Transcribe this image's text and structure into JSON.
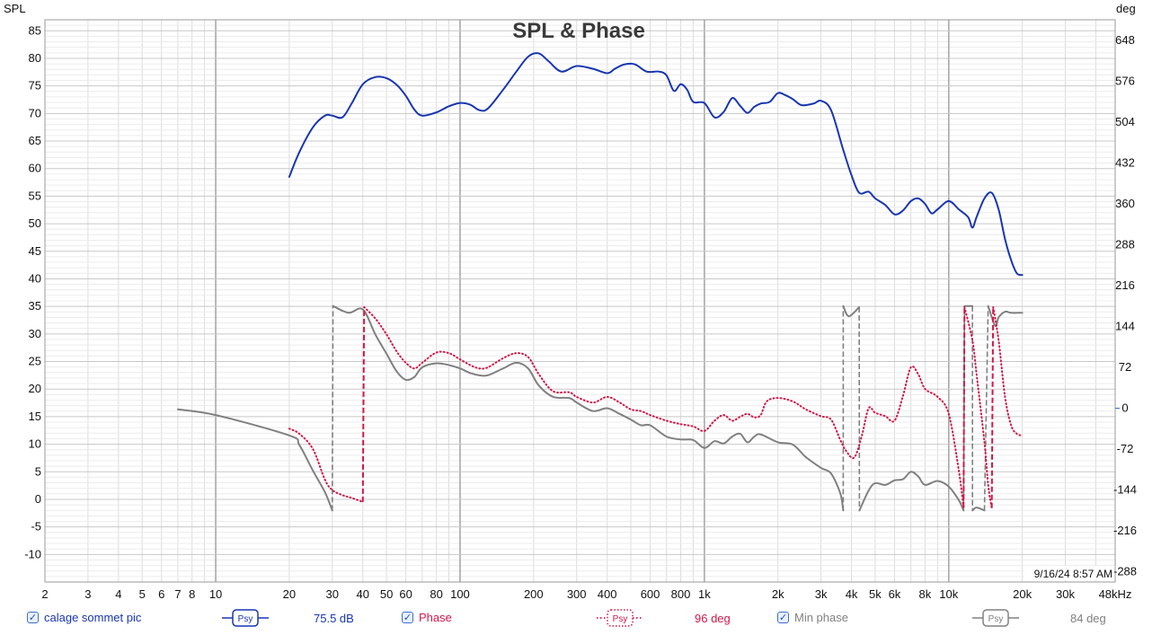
{
  "chart_data": {
    "type": "line",
    "title": "SPL & Phase",
    "ylabel_left": "SPL",
    "ylabel_right": "deg",
    "xscale": "log",
    "xlim": [
      2,
      48000
    ],
    "ylim_left": [
      -15,
      87
    ],
    "ylim_right": [
      -306,
      684
    ],
    "grid": true,
    "x_tick_labels": [
      {
        "v": 2,
        "t": "2"
      },
      {
        "v": 3,
        "t": "3"
      },
      {
        "v": 4,
        "t": "4"
      },
      {
        "v": 5,
        "t": "5"
      },
      {
        "v": 6,
        "t": "6"
      },
      {
        "v": 7,
        "t": "7"
      },
      {
        "v": 8,
        "t": "8"
      },
      {
        "v": 10,
        "t": "10"
      },
      {
        "v": 20,
        "t": "20"
      },
      {
        "v": 30,
        "t": "30"
      },
      {
        "v": 40,
        "t": "40"
      },
      {
        "v": 50,
        "t": "50"
      },
      {
        "v": 60,
        "t": "60"
      },
      {
        "v": 80,
        "t": "80"
      },
      {
        "v": 100,
        "t": "100"
      },
      {
        "v": 200,
        "t": "200"
      },
      {
        "v": 300,
        "t": "300"
      },
      {
        "v": 400,
        "t": "400"
      },
      {
        "v": 600,
        "t": "600"
      },
      {
        "v": 800,
        "t": "800"
      },
      {
        "v": 1000,
        "t": "1k"
      },
      {
        "v": 2000,
        "t": "2k"
      },
      {
        "v": 3000,
        "t": "3k"
      },
      {
        "v": 4000,
        "t": "4k"
      },
      {
        "v": 5000,
        "t": "5k"
      },
      {
        "v": 6000,
        "t": "6k"
      },
      {
        "v": 8000,
        "t": "8k"
      },
      {
        "v": 10000,
        "t": "10k"
      },
      {
        "v": 20000,
        "t": "20k"
      },
      {
        "v": 30000,
        "t": "30k"
      },
      {
        "v": 48000,
        "t": "48kHz"
      }
    ],
    "y_left_ticks": [
      -10,
      -5,
      0,
      5,
      10,
      15,
      20,
      25,
      30,
      35,
      40,
      45,
      50,
      55,
      60,
      65,
      70,
      75,
      80,
      85
    ],
    "y_right_ticks": [
      -288,
      -216,
      -144,
      -72,
      0,
      72,
      144,
      216,
      288,
      360,
      432,
      504,
      576,
      648
    ],
    "timestamp": "9/16/24 8:57 AM",
    "series": [
      {
        "name": "calage sommet pic",
        "axis": "left",
        "color": "#1836b0",
        "style": "solid",
        "readout": "75.5 dB",
        "points": [
          [
            20,
            58.5
          ],
          [
            22,
            63
          ],
          [
            25,
            67.5
          ],
          [
            28,
            69.6
          ],
          [
            30,
            69.6
          ],
          [
            33,
            69.3
          ],
          [
            36,
            71.8
          ],
          [
            40,
            75.3
          ],
          [
            45,
            76.6
          ],
          [
            50,
            76.4
          ],
          [
            55,
            75.2
          ],
          [
            60,
            73.2
          ],
          [
            65,
            70.7
          ],
          [
            70,
            69.6
          ],
          [
            80,
            70.2
          ],
          [
            90,
            71.3
          ],
          [
            100,
            71.9
          ],
          [
            110,
            71.6
          ],
          [
            120,
            70.6
          ],
          [
            130,
            70.9
          ],
          [
            150,
            74.3
          ],
          [
            170,
            77.6
          ],
          [
            190,
            80.3
          ],
          [
            210,
            80.9
          ],
          [
            230,
            79.5
          ],
          [
            260,
            77.6
          ],
          [
            300,
            78.6
          ],
          [
            350,
            78.1
          ],
          [
            400,
            77.3
          ],
          [
            430,
            78.1
          ],
          [
            470,
            78.9
          ],
          [
            520,
            78.9
          ],
          [
            580,
            77.6
          ],
          [
            650,
            77.6
          ],
          [
            700,
            76.9
          ],
          [
            750,
            74.1
          ],
          [
            800,
            75.3
          ],
          [
            850,
            74.3
          ],
          [
            900,
            72.1
          ],
          [
            1000,
            71.9
          ],
          [
            1100,
            69.3
          ],
          [
            1200,
            70.3
          ],
          [
            1300,
            72.8
          ],
          [
            1400,
            71.4
          ],
          [
            1500,
            70.1
          ],
          [
            1600,
            71.2
          ],
          [
            1700,
            71.8
          ],
          [
            1850,
            72.1
          ],
          [
            2000,
            73.7
          ],
          [
            2150,
            73.3
          ],
          [
            2300,
            72.6
          ],
          [
            2500,
            71.5
          ],
          [
            2800,
            71.8
          ],
          [
            3000,
            72.3
          ],
          [
            3300,
            70.6
          ],
          [
            3700,
            63.4
          ],
          [
            4000,
            58.8
          ],
          [
            4300,
            55.6
          ],
          [
            4700,
            55.8
          ],
          [
            5000,
            54.6
          ],
          [
            5500,
            53.4
          ],
          [
            6000,
            51.7
          ],
          [
            6500,
            52.4
          ],
          [
            7000,
            54.1
          ],
          [
            7500,
            54.6
          ],
          [
            8000,
            53.6
          ],
          [
            8500,
            51.9
          ],
          [
            9000,
            52.6
          ],
          [
            10000,
            54.1
          ],
          [
            11000,
            52.6
          ],
          [
            12000,
            51.2
          ],
          [
            12500,
            49.3
          ],
          [
            13000,
            51.2
          ],
          [
            14000,
            54.6
          ],
          [
            15000,
            55.6
          ],
          [
            16000,
            52.6
          ],
          [
            17000,
            47.2
          ],
          [
            18000,
            43.4
          ],
          [
            19000,
            41.0
          ],
          [
            20000,
            40.7
          ]
        ]
      },
      {
        "name": "Phase",
        "axis": "right",
        "color": "#d01848",
        "style": "dotted",
        "readout": "96 deg",
        "points": [
          [
            20,
            -36
          ],
          [
            22,
            -45
          ],
          [
            25,
            -72
          ],
          [
            28,
            -126
          ],
          [
            30,
            -144
          ],
          [
            33,
            -153
          ],
          [
            36,
            -158
          ],
          [
            40,
            -165
          ],
          [
            40.5,
            178
          ],
          [
            45,
            158
          ],
          [
            50,
            130
          ],
          [
            55,
            100
          ],
          [
            60,
            80
          ],
          [
            65,
            70
          ],
          [
            70,
            80
          ],
          [
            80,
            98
          ],
          [
            90,
            97
          ],
          [
            100,
            86
          ],
          [
            110,
            76
          ],
          [
            120,
            70
          ],
          [
            130,
            72
          ],
          [
            150,
            88
          ],
          [
            170,
            97
          ],
          [
            190,
            90
          ],
          [
            210,
            60
          ],
          [
            240,
            30
          ],
          [
            280,
            28
          ],
          [
            300,
            20
          ],
          [
            350,
            10
          ],
          [
            400,
            20
          ],
          [
            450,
            10
          ],
          [
            500,
            -2
          ],
          [
            550,
            -5
          ],
          [
            600,
            -12
          ],
          [
            700,
            -22
          ],
          [
            800,
            -28
          ],
          [
            900,
            -32
          ],
          [
            1000,
            -40
          ],
          [
            1100,
            -22
          ],
          [
            1200,
            -12
          ],
          [
            1300,
            -22
          ],
          [
            1400,
            -15
          ],
          [
            1500,
            -10
          ],
          [
            1600,
            -16
          ],
          [
            1700,
            -12
          ],
          [
            1800,
            12
          ],
          [
            2000,
            18
          ],
          [
            2300,
            12
          ],
          [
            2600,
            -2
          ],
          [
            3000,
            -14
          ],
          [
            3300,
            -20
          ],
          [
            3600,
            -56
          ],
          [
            3800,
            -75
          ],
          [
            4100,
            -87
          ],
          [
            4400,
            -50
          ],
          [
            4700,
            0
          ],
          [
            5000,
            -8
          ],
          [
            5500,
            -14
          ],
          [
            6000,
            -22
          ],
          [
            6500,
            22
          ],
          [
            7000,
            72
          ],
          [
            7500,
            60
          ],
          [
            8000,
            34
          ],
          [
            9000,
            20
          ],
          [
            10000,
            -10
          ],
          [
            11000,
            -110
          ],
          [
            11500,
            -175
          ],
          [
            11600,
            178
          ],
          [
            12500,
            120
          ],
          [
            13000,
            60
          ],
          [
            14000,
            -60
          ],
          [
            14500,
            -135
          ],
          [
            15000,
            -176
          ],
          [
            15200,
            178
          ],
          [
            16000,
            120
          ],
          [
            17000,
            20
          ],
          [
            18000,
            -30
          ],
          [
            19000,
            -45
          ],
          [
            20000,
            -48
          ]
        ]
      },
      {
        "name": "Min phase",
        "axis": "right",
        "color": "#808080",
        "style": "solid",
        "readout": "84 deg",
        "points": [
          [
            7,
            -2
          ],
          [
            10,
            -12
          ],
          [
            20,
            -48
          ],
          [
            22,
            -65
          ],
          [
            25,
            -110
          ],
          [
            28,
            -148
          ],
          [
            30,
            -180
          ],
          [
            30.2,
            180
          ],
          [
            35,
            168
          ],
          [
            40,
            174
          ],
          [
            45,
            130
          ],
          [
            50,
            96
          ],
          [
            55,
            65
          ],
          [
            60,
            50
          ],
          [
            65,
            55
          ],
          [
            70,
            72
          ],
          [
            80,
            79
          ],
          [
            90,
            76
          ],
          [
            100,
            70
          ],
          [
            110,
            62
          ],
          [
            120,
            58
          ],
          [
            130,
            58
          ],
          [
            150,
            70
          ],
          [
            170,
            80
          ],
          [
            190,
            70
          ],
          [
            210,
            40
          ],
          [
            240,
            20
          ],
          [
            280,
            18
          ],
          [
            300,
            10
          ],
          [
            350,
            -5
          ],
          [
            400,
            0
          ],
          [
            450,
            -10
          ],
          [
            500,
            -20
          ],
          [
            550,
            -30
          ],
          [
            600,
            -30
          ],
          [
            700,
            -50
          ],
          [
            800,
            -55
          ],
          [
            900,
            -56
          ],
          [
            1000,
            -70
          ],
          [
            1100,
            -58
          ],
          [
            1200,
            -62
          ],
          [
            1300,
            -50
          ],
          [
            1400,
            -45
          ],
          [
            1500,
            -60
          ],
          [
            1600,
            -50
          ],
          [
            1700,
            -46
          ],
          [
            2000,
            -60
          ],
          [
            2300,
            -64
          ],
          [
            2600,
            -86
          ],
          [
            3000,
            -105
          ],
          [
            3300,
            -115
          ],
          [
            3600,
            -150
          ],
          [
            3700,
            -180
          ],
          [
            3701,
            180
          ],
          [
            3900,
            162
          ],
          [
            4300,
            178
          ],
          [
            4310,
            -180
          ],
          [
            4700,
            -145
          ],
          [
            5000,
            -132
          ],
          [
            5500,
            -135
          ],
          [
            6000,
            -127
          ],
          [
            6500,
            -125
          ],
          [
            7000,
            -112
          ],
          [
            7500,
            -120
          ],
          [
            8000,
            -135
          ],
          [
            9000,
            -128
          ],
          [
            10000,
            -138
          ],
          [
            11000,
            -162
          ],
          [
            11500,
            -180
          ],
          [
            11600,
            180
          ],
          [
            12500,
            180
          ],
          [
            12510,
            -180
          ],
          [
            13000,
            -175
          ],
          [
            14000,
            -180
          ],
          [
            14500,
            180
          ],
          [
            15500,
            145
          ],
          [
            16000,
            160
          ],
          [
            17000,
            170
          ],
          [
            18000,
            168
          ],
          [
            20000,
            168
          ]
        ]
      }
    ]
  },
  "legend": [
    {
      "label": "calage sommet pic",
      "psy": "Psy",
      "value": "75.5 dB",
      "color": "#1836b0",
      "checked": true
    },
    {
      "label": "Phase",
      "psy": "Psy",
      "value": "96 deg",
      "color": "#d01848",
      "checked": true
    },
    {
      "label": "Min phase",
      "psy": "Psy",
      "value": "84 deg",
      "color": "#808080",
      "checked": true
    }
  ]
}
